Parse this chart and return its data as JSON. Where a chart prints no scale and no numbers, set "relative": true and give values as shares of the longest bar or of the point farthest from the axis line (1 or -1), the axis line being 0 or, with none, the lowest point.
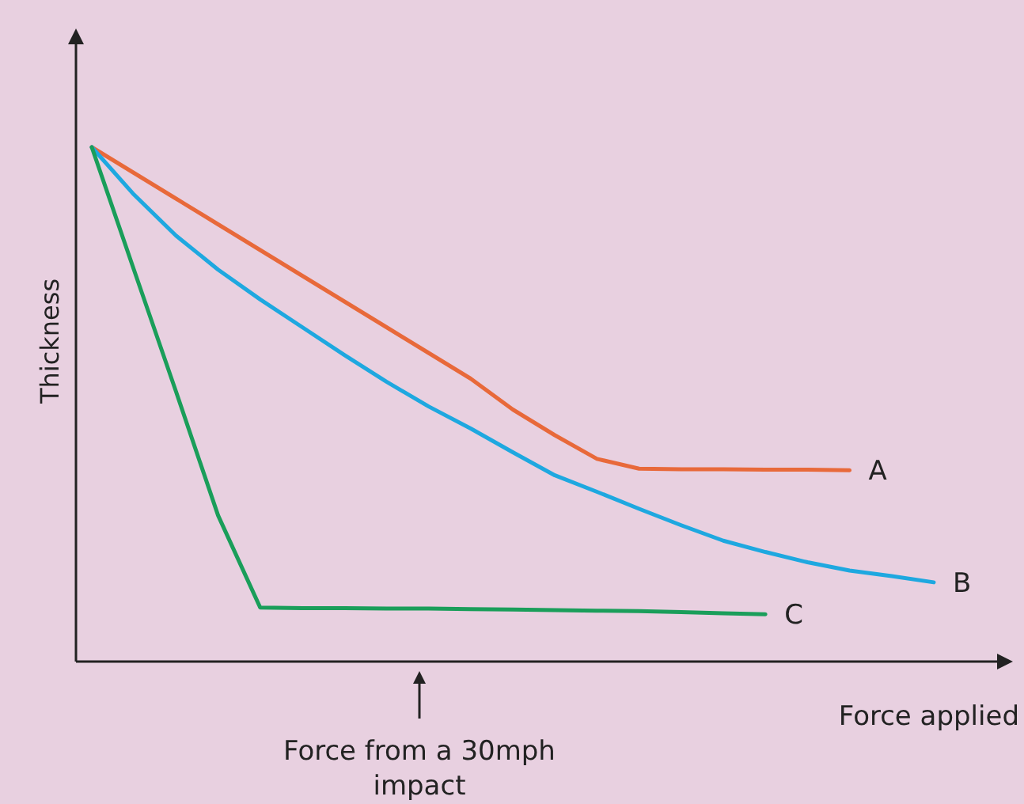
{
  "chart_data": {
    "type": "line",
    "relative": true,
    "xlabel": "Force applied",
    "ylabel": "Thickness",
    "legend": false,
    "grid": false,
    "marker": "none",
    "line_style": "solid",
    "categories": [
      null,
      null,
      null,
      null,
      null,
      null,
      null,
      null,
      null,
      null,
      null,
      null,
      null,
      null,
      null,
      null,
      null,
      null,
      null,
      null,
      null
    ],
    "annotations": [
      "Force from a 30mph impact"
    ],
    "series": [
      {
        "name": "A",
        "color": "#e8693a",
        "values": [
          1,
          0.95,
          0.9,
          0.85,
          0.8,
          0.75,
          0.7,
          0.65,
          0.6,
          0.55,
          0.49,
          0.44,
          0.394,
          0.375,
          0.374,
          0.374,
          0.373,
          0.373,
          0.372,
          null,
          null
        ]
      },
      {
        "name": "B",
        "color": "#1ea8e0",
        "values": [
          1,
          0.908,
          0.828,
          0.762,
          0.704,
          0.65,
          0.596,
          0.544,
          0.496,
          0.453,
          0.407,
          0.362,
          0.33,
          0.297,
          0.265,
          0.235,
          0.213,
          0.193,
          0.177,
          0.166,
          0.154
        ]
      },
      {
        "name": "C",
        "color": "#1a9e5a",
        "values": [
          1,
          0.762,
          0.525,
          0.284,
          0.105,
          0.104,
          0.104,
          0.103,
          0.103,
          0.102,
          0.101,
          0.1,
          0.099,
          0.098,
          0.096,
          0.094,
          0.092,
          null,
          null,
          null,
          null
        ]
      }
    ]
  }
}
